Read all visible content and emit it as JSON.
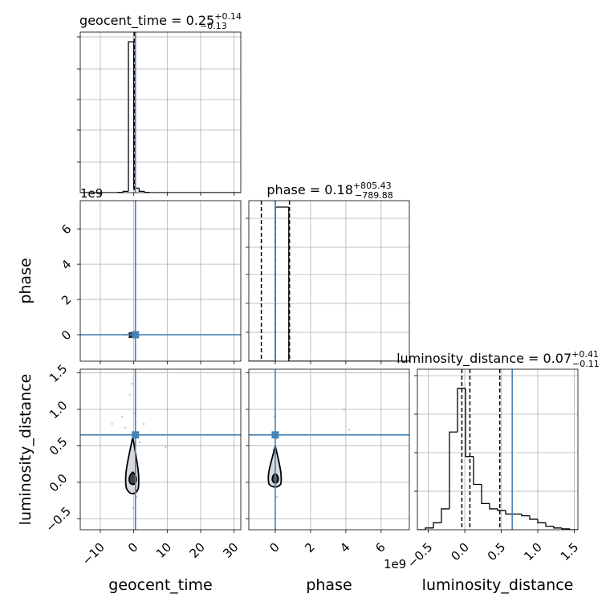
{
  "figure": {
    "truth_color": "#4682b4",
    "hist_color": "#000000",
    "offset_text": "1e9"
  },
  "chart_data": [
    {
      "panel": "geocent_time-hist",
      "type": "histogram",
      "title_main": "geocent_time = 0.25",
      "title_sup": "+0.14",
      "title_sub": "−0.13",
      "xlim": [
        -16,
        32
      ],
      "bin_edges": [
        -16,
        -14.4,
        -12.8,
        -11.2,
        -9.6,
        -8.0,
        -6.4,
        -4.8,
        -3.2,
        -1.6,
        0.0,
        1.6,
        3.2,
        4.8,
        6.4,
        8.0,
        9.6,
        11.2,
        12.8,
        14.4,
        16.0,
        17.6,
        19.2,
        20.8,
        22.4,
        24.0,
        25.6,
        27.2,
        28.8,
        30.4,
        32.0
      ],
      "counts": [
        0,
        0,
        0,
        0,
        0,
        0,
        0,
        0.002,
        0.008,
        0.94,
        0.028,
        0.008,
        0.002,
        0,
        0,
        0,
        0,
        0,
        0,
        0,
        0,
        0,
        0,
        0,
        0,
        0,
        0,
        0,
        0,
        0
      ],
      "ymax": 1.0,
      "quantiles": [
        0.12,
        0.25,
        0.39
      ],
      "truth": 0.5
    },
    {
      "panel": "phase-vs-geocent_time",
      "type": "scatter-contour",
      "xlim": [
        -16,
        32
      ],
      "ylim": [
        -1.5,
        7.6
      ],
      "truth": [
        0.5,
        0.0
      ],
      "points": [
        [
          -1.8,
          0.02
        ],
        [
          -1.2,
          -0.03
        ],
        [
          -0.8,
          0.05
        ],
        [
          -0.4,
          -0.01
        ],
        [
          0.0,
          0.03
        ],
        [
          0.3,
          -0.04
        ],
        [
          0.6,
          0.01
        ],
        [
          -2.4,
          0.0
        ],
        [
          1.0,
          0.02
        ],
        [
          -3.0,
          -0.02
        ]
      ]
    },
    {
      "panel": "phase-hist",
      "type": "histogram",
      "title_main": "phase = 0.18",
      "title_sup": "+805.43",
      "title_sub": "−789.88",
      "xlim": [
        -1.5,
        7.6
      ],
      "bin_edges": [
        -1.5,
        -0.745,
        0.01,
        0.765,
        1.52,
        2.275,
        3.03,
        3.785,
        4.54,
        5.295,
        6.05,
        6.805,
        7.56
      ],
      "counts": [
        0,
        0.0,
        0.96,
        0.0,
        0,
        0,
        0,
        0,
        0,
        0,
        0,
        0
      ],
      "ymax": 1.0,
      "quantiles": [
        -0.79,
        0.00018,
        0.805
      ],
      "truth": 0.0
    },
    {
      "panel": "luminosity_distance-vs-geocent_time",
      "type": "scatter-contour",
      "xlim": [
        -16,
        32
      ],
      "ylim": [
        -0.65,
        1.55
      ],
      "truth": [
        0.5,
        0.65
      ],
      "points": [
        [
          -1.2,
          1.2
        ],
        [
          -0.6,
          1.35
        ],
        [
          0.2,
          0.95
        ],
        [
          -2.5,
          0.75
        ],
        [
          1.8,
          0.55
        ],
        [
          -0.9,
          0.3
        ],
        [
          0.8,
          -0.2
        ],
        [
          -3.5,
          0.9
        ],
        [
          3.0,
          0.8
        ],
        [
          -6.5,
          0.8
        ],
        [
          9.5,
          0.48
        ],
        [
          -1.5,
          0.05
        ],
        [
          0.5,
          0.15
        ],
        [
          -0.3,
          -0.35
        ]
      ]
    },
    {
      "panel": "luminosity_distance-vs-phase",
      "type": "scatter-contour",
      "xlim": [
        -1.5,
        7.6
      ],
      "ylim": [
        -0.65,
        1.55
      ],
      "truth": [
        0.0,
        0.65
      ],
      "points": [
        [
          0.0,
          1.2
        ],
        [
          -0.05,
          0.9
        ],
        [
          0.05,
          0.6
        ],
        [
          0.02,
          0.3
        ],
        [
          -0.02,
          0.1
        ],
        [
          0.1,
          -0.2
        ],
        [
          3.9,
          1.0
        ],
        [
          4.2,
          0.72
        ],
        [
          -0.1,
          0.45
        ]
      ]
    },
    {
      "panel": "luminosity_distance-hist",
      "type": "histogram",
      "title_main": "luminosity_distance = 0.07",
      "title_sup": "+0.41",
      "title_sub": "−0.11",
      "xlim": [
        -0.65,
        1.55
      ],
      "bin_edges": [
        -0.65,
        -0.54,
        -0.43,
        -0.32,
        -0.21,
        -0.1,
        0.01,
        0.12,
        0.23,
        0.34,
        0.45,
        0.56,
        0.67,
        0.78,
        0.89,
        1.0,
        1.11,
        1.22,
        1.33,
        1.44,
        1.55
      ],
      "counts": [
        0.0,
        0.01,
        0.04,
        0.12,
        0.56,
        0.81,
        0.42,
        0.26,
        0.15,
        0.12,
        0.11,
        0.09,
        0.09,
        0.08,
        0.06,
        0.04,
        0.02,
        0.01,
        0.005,
        0.0
      ],
      "ymax": 0.92,
      "quantiles": [
        -0.04,
        0.07,
        0.48
      ],
      "truth": 0.65
    }
  ],
  "axes": {
    "geocent_time": {
      "label": "geocent_time",
      "ticks": [
        -10,
        0,
        10,
        20,
        30
      ],
      "tick_labels": [
        "−10",
        "0",
        "10",
        "20",
        "30"
      ]
    },
    "phase": {
      "label": "phase",
      "ticks": [
        0,
        2,
        4,
        6
      ],
      "tick_labels": [
        "0",
        "2",
        "4",
        "6"
      ]
    },
    "luminosity_distance": {
      "label": "luminosity_distance",
      "ticks": [
        -0.5,
        0.0,
        0.5,
        1.0,
        1.5
      ],
      "tick_labels": [
        "−0.5",
        "0.0",
        "0.5",
        "1.0",
        "1.5"
      ]
    }
  }
}
